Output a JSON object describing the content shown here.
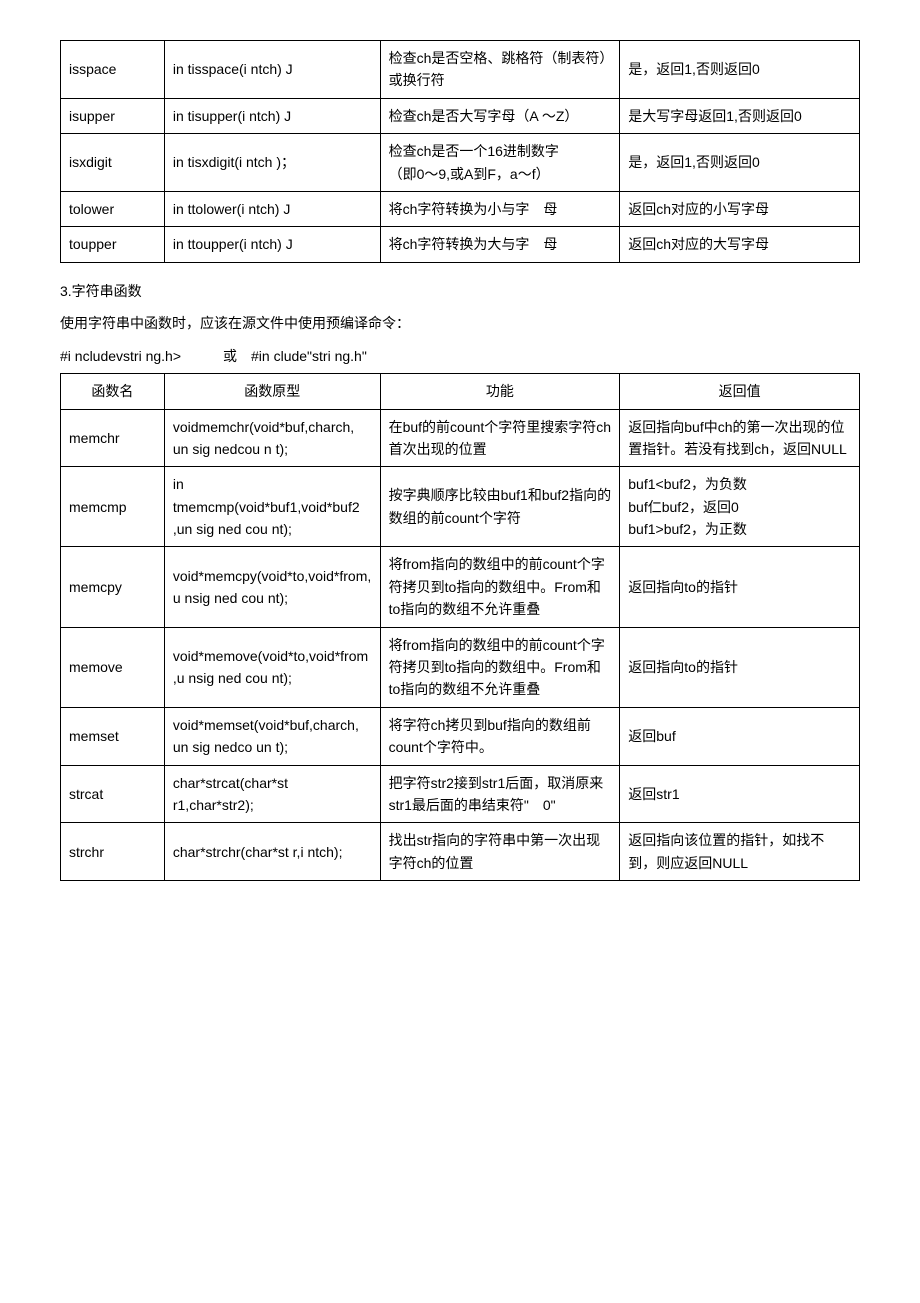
{
  "table1": {
    "rows": [
      {
        "name": "isspace",
        "proto": "in tisspace(i ntch) J",
        "func": "检查ch是否空格、跳格符（制表符）或换行符",
        "ret": "是，返回1,否则返回0"
      },
      {
        "name": "isupper",
        "proto": "in tisupper(i ntch) J",
        "func": "检查ch是否大写字母（A ～Z）",
        "ret": "是大写字母返回1,否则返回0"
      },
      {
        "name": "isxdigit",
        "proto": "in tisxdigit(i ntch )；",
        "func": "检查ch是否一个16进制数字\n（即0～9,或A到F，a～f）",
        "ret": "是，返回1,否则返回0"
      },
      {
        "name": "tolower",
        "proto": "in ttolower(i ntch) J",
        "func": "将ch字符转换为小与字　母",
        "ret": "返回ch对应的小写字母"
      },
      {
        "name": "toupper",
        "proto": "in ttoupper(i ntch) J",
        "func": "将ch字符转换为大与字　母",
        "ret": "返回ch对应的大写字母"
      }
    ]
  },
  "section3": {
    "title": "3.字符串函数",
    "para1": "使用字符串中函数时，应该在源文件中使用预编译命令：",
    "para2": "#i ncludevstri ng.h>　　　或　#in clude\"stri ng.h\""
  },
  "table2": {
    "headers": {
      "name": "函数名",
      "proto": "函数原型",
      "func": "功能",
      "ret": "返回值"
    },
    "rows": [
      {
        "name": "memchr",
        "proto": "voidmemchr(void*buf,charch, un sig nedcou n t);",
        "func": "在buf的前count个字符里搜索字符ch首次出现的位置",
        "ret": "返回指向buf中ch的第一次出现的位置指针。若没有找到ch，返回NULL"
      },
      {
        "name": " memcmp",
        "proto": "in tmemcmp(void*buf1,void*buf2 ,un sig ned cou nt);",
        "func": "按字典顺序比较由buf1和buf2指向的数组的前count个字符",
        "ret": "buf1<buf2，为负数\nbuf仁buf2，返回0\nbuf1>buf2，为正数"
      },
      {
        "name": "memcpy",
        "proto": "void*memcpy(void*to,void*from,u nsig ned cou nt);",
        "func": "将from指向的数组中的前count个字符拷贝到to指向的数组中。From和to指向的数组不允许重叠",
        "ret": "返回指向to的指针"
      },
      {
        "name": " memove",
        "proto": "void*memove(void*to,void*from,u nsig ned cou nt);",
        "func": "将from指向的数组中的前count个字符拷贝到to指向的数组中。From和to指向的数组不允许重叠",
        "ret": "返回指向to的指针"
      },
      {
        "name": "memset",
        "proto": "void*memset(void*buf,charch, un sig nedco un t);",
        "func": "将字符ch拷贝到buf指向的数组前count个字符中。",
        "ret": "返回buf"
      },
      {
        "name": "strcat",
        "proto": "char*strcat(char*st r1,char*str2);",
        "func": "把字符str2接到str1后面，取消原来str1最后面的串结束符\"　0\"",
        "ret": "返回str1"
      },
      {
        "name": "strchr",
        "proto": "char*strchr(char*st r,i ntch);",
        "func": "找出str指向的字符串中第一次出现字符ch的位置",
        "ret": "返回指向该位置的指针，如找不到，则应返回NULL"
      }
    ]
  }
}
